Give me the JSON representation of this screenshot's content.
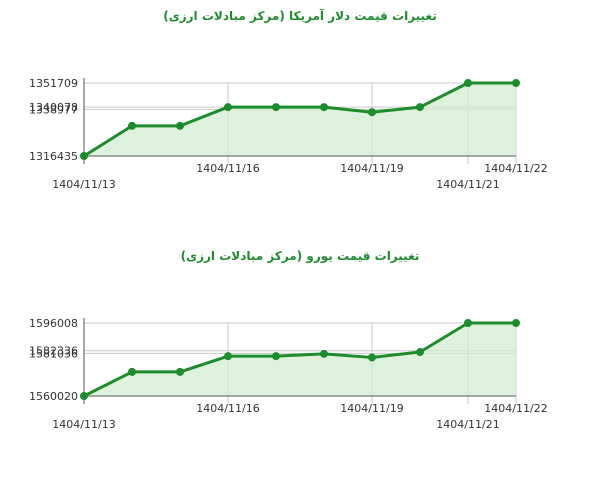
{
  "chart_data": [
    {
      "type": "area",
      "title": "تغییرات قیمت دلار آمریکا (مرکز مبادلات ارزی)",
      "x": [
        "1404/11/13",
        "1404/11/14",
        "1404/11/15",
        "1404/11/16",
        "1404/11/17",
        "1404/11/18",
        "1404/11/19",
        "1404/11/20",
        "1404/11/21",
        "1404/11/22"
      ],
      "values": [
        1316435,
        1331000,
        1331000,
        1340077,
        1340077,
        1340077,
        1337600,
        1340077,
        1351709,
        1351709
      ],
      "y_ticks": [
        "1351709",
        "1340078",
        "1338977",
        "1316435"
      ],
      "y_tick_values": [
        1351709,
        1340078,
        1338977,
        1316435
      ],
      "x_ticks": [
        "1404/11/13",
        "1404/11/16",
        "1404/11/19",
        "1404/11/21",
        "1404/11/22"
      ],
      "ylim": [
        1316435,
        1351709
      ],
      "grid": true,
      "colors": {
        "line": "#1c8c2c",
        "fill": "#d3ecd0",
        "grid": "#c8c8c8",
        "title": "#1c8c2c"
      }
    },
    {
      "type": "area",
      "title": "تغییرات قیمت یورو (مرکز مبادلات ارزی)",
      "x": [
        "1404/11/13",
        "1404/11/14",
        "1404/11/15",
        "1404/11/16",
        "1404/11/17",
        "1404/11/18",
        "1404/11/19",
        "1404/11/20",
        "1404/11/21",
        "1404/11/22"
      ],
      "values": [
        1560020,
        1571900,
        1571900,
        1579660,
        1579660,
        1580800,
        1579030,
        1581700,
        1596008,
        1596008
      ],
      "y_ticks": [
        "1596008",
        "1582336",
        "1581036",
        "1560020"
      ],
      "y_tick_values": [
        1596008,
        1582336,
        1581036,
        1560020
      ],
      "x_ticks": [
        "1404/11/13",
        "1404/11/16",
        "1404/11/19",
        "1404/11/21",
        "1404/11/22"
      ],
      "ylim": [
        1560020,
        1596008
      ],
      "grid": true,
      "colors": {
        "line": "#1c8c2c",
        "fill": "#d3ecd0",
        "grid": "#c8c8c8",
        "title": "#1c8c2c"
      }
    }
  ]
}
